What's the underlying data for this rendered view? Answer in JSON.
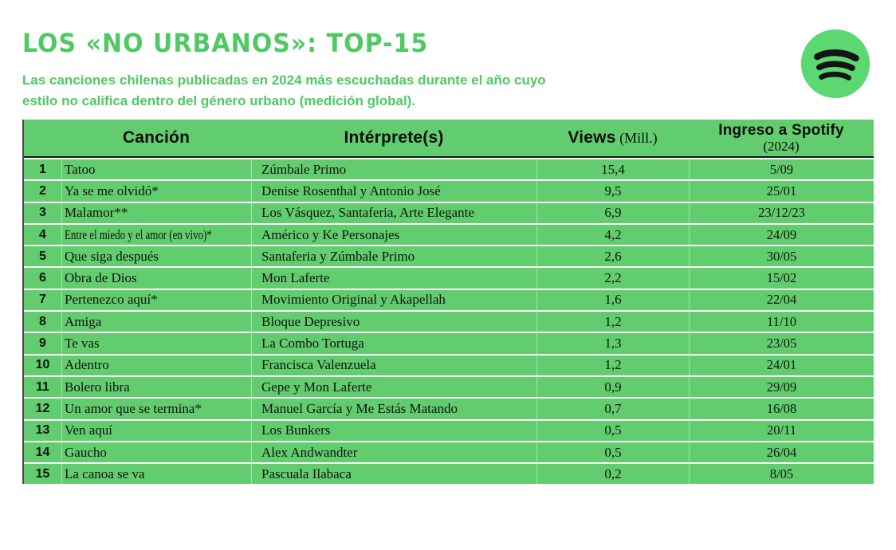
{
  "header": {
    "title": "LOS «NO URBANOS»: TOP-15",
    "subtitle_line1": "Las canciones chilenas publicadas en 2024 más escuchadas durante el año cuyo",
    "subtitle_line2": "estilo no califica dentro del género urbano (medición global).",
    "logo": "spotify-logo"
  },
  "colors": {
    "title_green": "#4ec963",
    "table_green": "#62cd6e",
    "logo_green": "#5cd873",
    "ink": "#121212",
    "row_separator": "#ffffff",
    "header_rule": "#161616"
  },
  "table": {
    "columns": {
      "rank": "",
      "song": "Canción",
      "artist": "Intérprete(s)",
      "views_bold": "Views",
      "views_note": " (Mill.)",
      "date_bold": "Ingreso a Spotify",
      "date_note": "(2024)"
    },
    "rows": [
      {
        "rank": "1",
        "song": "Tatoo",
        "condensed": false,
        "artist": "Zúmbale Primo",
        "views": "15,4",
        "date": "5/09"
      },
      {
        "rank": "2",
        "song": "Ya se me olvidó*",
        "condensed": false,
        "artist": "Denise Rosenthal y Antonio José",
        "views": "9,5",
        "date": "25/01"
      },
      {
        "rank": "3",
        "song": "Malamor**",
        "condensed": false,
        "artist": "Los Vásquez, Santaferia, Arte Elegante",
        "views": "6,9",
        "date": "23/12/23"
      },
      {
        "rank": "4",
        "song": "Entre el miedo y el amor (en vivo)*",
        "condensed": true,
        "artist": "Américo y Ke Personajes",
        "views": "4,2",
        "date": "24/09"
      },
      {
        "rank": "5",
        "song": "Que siga después",
        "condensed": false,
        "artist": "Santaferia y Zúmbale Primo",
        "views": "2,6",
        "date": "30/05"
      },
      {
        "rank": "6",
        "song": "Obra de Dios",
        "condensed": false,
        "artist": "Mon Laferte",
        "views": "2,2",
        "date": "15/02"
      },
      {
        "rank": "7",
        "song": "Pertenezco aquí*",
        "condensed": false,
        "artist": "Movimiento Original y Akapellah",
        "views": "1,6",
        "date": "22/04"
      },
      {
        "rank": "8",
        "song": "Amiga",
        "condensed": false,
        "artist": "Bloque Depresivo",
        "views": "1,2",
        "date": "11/10"
      },
      {
        "rank": "9",
        "song": "Te vas",
        "condensed": false,
        "artist": "La Combo Tortuga",
        "views": "1,3",
        "date": "23/05"
      },
      {
        "rank": "10",
        "song": "Adentro",
        "condensed": false,
        "artist": "Francisca Valenzuela",
        "views": "1,2",
        "date": "24/01"
      },
      {
        "rank": "11",
        "song": "Bolero libra",
        "condensed": false,
        "artist": "Gepe y Mon Laferte",
        "views": "0,9",
        "date": "29/09"
      },
      {
        "rank": "12",
        "song": "Un amor que se termina*",
        "condensed": false,
        "artist": "Manuel García y Me Estás Matando",
        "views": "0,7",
        "date": "16/08"
      },
      {
        "rank": "13",
        "song": "Ven aquí",
        "condensed": false,
        "artist": "Los Bunkers",
        "views": "0,5",
        "date": "20/11"
      },
      {
        "rank": "14",
        "song": "Gaucho",
        "condensed": false,
        "artist": "Alex Andwandter",
        "views": "0,5",
        "date": "26/04"
      },
      {
        "rank": "15",
        "song": "La canoa se va",
        "condensed": false,
        "artist": "Pascuala Ilabaca",
        "views": "0,2",
        "date": "8/05"
      }
    ]
  },
  "chart_data": {
    "type": "table",
    "title": "LOS «NO URBANOS»: TOP-15",
    "subtitle": "Las canciones chilenas publicadas en 2024 más escuchadas durante el año cuyo estilo no califica dentro del género urbano (medición global).",
    "columns": [
      "#",
      "Canción",
      "Intérprete(s)",
      "Views (Mill.)",
      "Ingreso a Spotify (2024)"
    ],
    "rows": [
      [
        "1",
        "Tatoo",
        "Zúmbale Primo",
        "15,4",
        "5/09"
      ],
      [
        "2",
        "Ya se me olvidó*",
        "Denise Rosenthal y Antonio José",
        "9,5",
        "25/01"
      ],
      [
        "3",
        "Malamor**",
        "Los Vásquez, Santaferia, Arte Elegante",
        "6,9",
        "23/12/23"
      ],
      [
        "4",
        "Entre el miedo y el amor (en vivo)*",
        "Américo y Ke Personajes",
        "4,2",
        "24/09"
      ],
      [
        "5",
        "Que siga después",
        "Santaferia y Zúmbale Primo",
        "2,6",
        "30/05"
      ],
      [
        "6",
        "Obra de Dios",
        "Mon Laferte",
        "2,2",
        "15/02"
      ],
      [
        "7",
        "Pertenezco aquí*",
        "Movimiento Original y Akapellah",
        "1,6",
        "22/04"
      ],
      [
        "8",
        "Amiga",
        "Bloque Depresivo",
        "1,2",
        "11/10"
      ],
      [
        "9",
        "Te vas",
        "La Combo Tortuga",
        "1,3",
        "23/05"
      ],
      [
        "10",
        "Adentro",
        "Francisca Valenzuela",
        "1,2",
        "24/01"
      ],
      [
        "11",
        "Bolero libra",
        "Gepe y Mon Laferte",
        "0,9",
        "29/09"
      ],
      [
        "12",
        "Un amor que se termina*",
        "Manuel García y Me Estás Matando",
        "0,7",
        "16/08"
      ],
      [
        "13",
        "Ven aquí",
        "Los Bunkers",
        "0,5",
        "20/11"
      ],
      [
        "14",
        "Gaucho",
        "Alex Andwandter",
        "0,5",
        "26/04"
      ],
      [
        "15",
        "La canoa se va",
        "Pascuala Ilabaca",
        "0,2",
        "8/05"
      ]
    ]
  }
}
